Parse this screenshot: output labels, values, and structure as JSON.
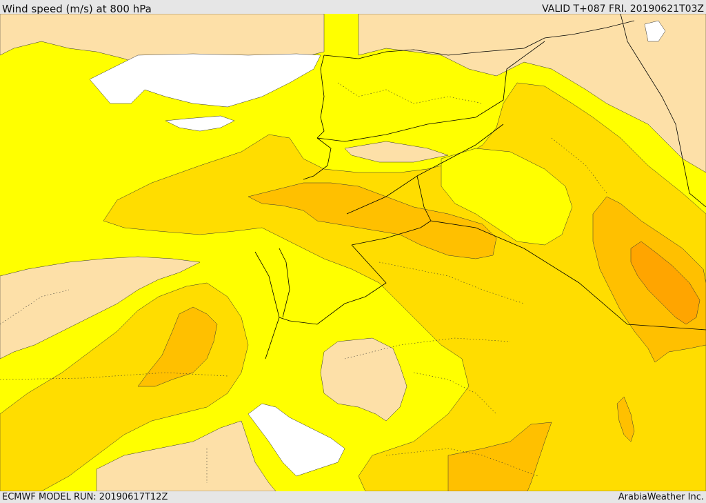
{
  "header": {
    "title": "Wind speed (m/s) at 800 hPa",
    "valid": "VALID T+087 FRI. 20190621T03Z"
  },
  "footer": {
    "model_run": "ECMWF MODEL RUN: 20190617T12Z",
    "brand": "ArabiaWeather Inc."
  },
  "colors": {
    "sea_or_calm": "#ffffff",
    "band_tan": "#fde0a8",
    "band_yellow": "#ffff00",
    "band_gold": "#ffdd00",
    "band_amber": "#ffc000",
    "band_orange": "#ffa500",
    "borders": "#000000"
  }
}
